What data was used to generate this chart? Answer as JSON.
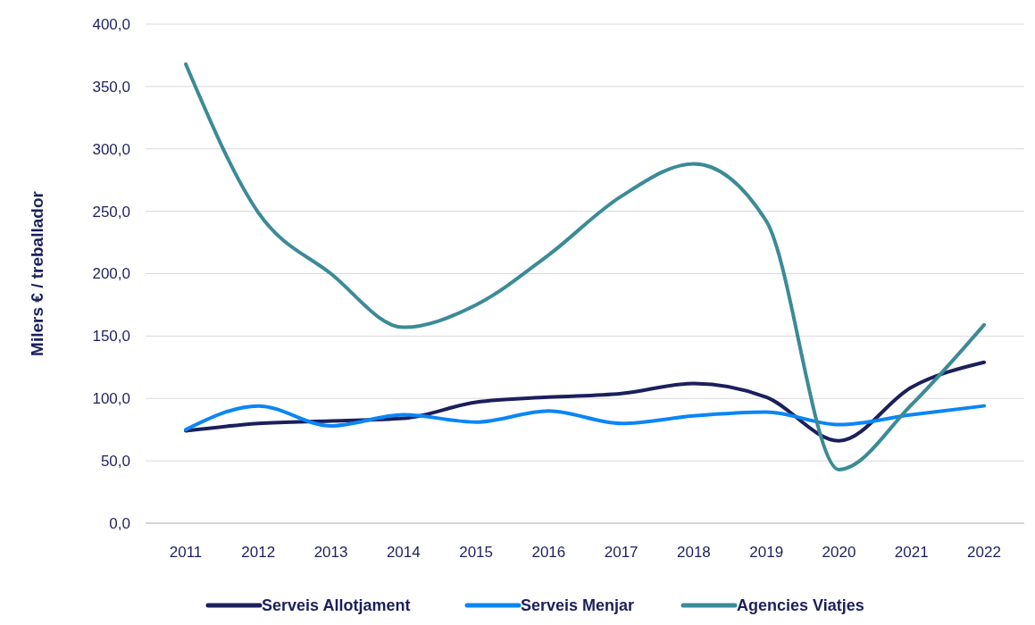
{
  "chart_data": {
    "type": "line",
    "ylabel": "Milers € / treballador",
    "categories": [
      "2011",
      "2012",
      "2013",
      "2014",
      "2015",
      "2016",
      "2017",
      "2018",
      "2019",
      "2020",
      "2021",
      "2022"
    ],
    "series": [
      {
        "name": "Serveis Allotjament",
        "color": "#1b1f5c",
        "values": [
          74,
          80,
          82,
          84,
          97,
          101,
          104,
          112,
          101,
          66,
          109,
          129
        ]
      },
      {
        "name": "Serveis Menjar",
        "color": "#0b86f4",
        "values": [
          75,
          94,
          78,
          87,
          81,
          90,
          80,
          86,
          89,
          79,
          87,
          94
        ]
      },
      {
        "name": "Agencies Viatjes",
        "color": "#3b8b97",
        "values": [
          368,
          249,
          200,
          157,
          175,
          215,
          262,
          288,
          242,
          43,
          95,
          159
        ]
      }
    ],
    "ylim": [
      0,
      400
    ],
    "yticks": [
      {
        "value": 0,
        "label": "0,0"
      },
      {
        "value": 50,
        "label": "50,0"
      },
      {
        "value": 100,
        "label": "100,0"
      },
      {
        "value": 150,
        "label": "150,0"
      },
      {
        "value": 200,
        "label": "200,0"
      },
      {
        "value": 250,
        "label": "250,0"
      },
      {
        "value": 300,
        "label": "300,0"
      },
      {
        "value": 350,
        "label": "350,0"
      },
      {
        "value": 400,
        "label": "400,0"
      }
    ],
    "grid": "y",
    "legend": "bottom",
    "marker": "none",
    "line_style": "solid"
  }
}
